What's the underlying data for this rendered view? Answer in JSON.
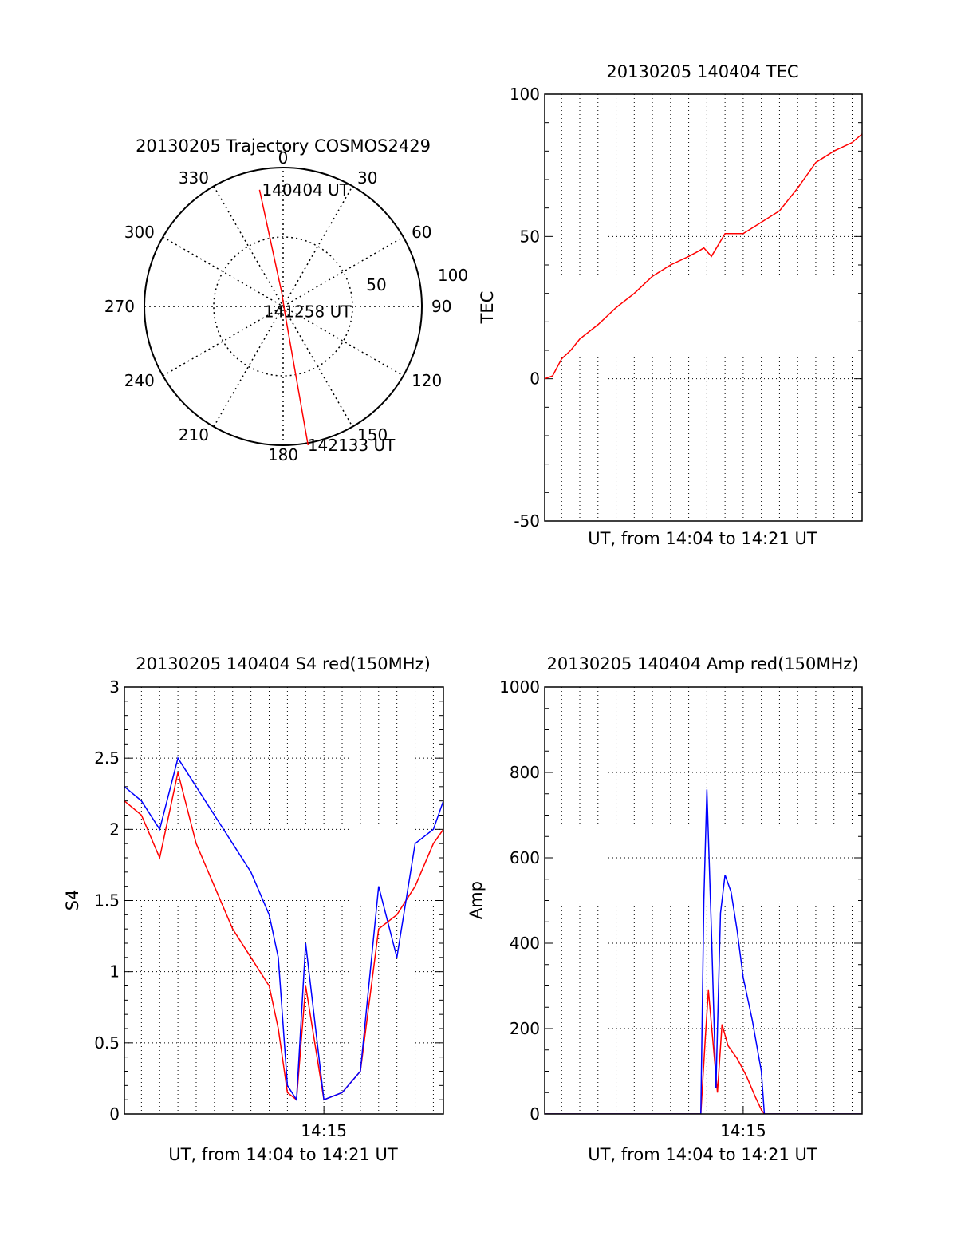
{
  "chart_data": [
    {
      "type": "scatter",
      "id": "trajectory",
      "title": "20130205 Trajectory COSMOS2429",
      "azimuth_labels": [
        "0",
        "30",
        "60",
        "90",
        "120",
        "150",
        "180",
        "210",
        "240",
        "270",
        "300",
        "330"
      ],
      "radial_labels": [
        "50",
        "100"
      ],
      "grid": true,
      "series": [
        {
          "color": "#ff0000",
          "azimuth_deg": [
            349,
            356,
            30,
            170
          ],
          "zenith_deg": [
            86,
            10,
            1,
            102
          ],
          "x": [
            -17,
            -1,
            1,
            18
          ],
          "y": [
            84,
            10,
            -3,
            -100
          ]
        }
      ],
      "annotations": [
        {
          "text": "140404 UT",
          "azimuth_deg": 349,
          "zenith_deg": 86
        },
        {
          "text": "141258 UT",
          "azimuth_deg": 30,
          "zenith_deg": 1
        },
        {
          "text": "142133 UT",
          "azimuth_deg": 170,
          "zenith_deg": 102
        }
      ]
    },
    {
      "type": "line",
      "id": "tec",
      "title": "20130205 140404 TEC",
      "xlabel": "UT, from 14:04 to 14:21 UT",
      "ylabel": "TEC",
      "ylim": [
        -50,
        100
      ],
      "xlim": [
        "14:04:04",
        "14:21:33"
      ],
      "yticks": [
        -50,
        0,
        50,
        100
      ],
      "grid": true,
      "series": [
        {
          "color": "#ff0000",
          "x": [
            "14:04:04",
            "14:04:30",
            "14:05:00",
            "14:05:30",
            "14:06:00",
            "14:07:00",
            "14:08:00",
            "14:09:00",
            "14:10:00",
            "14:11:00",
            "14:12:00",
            "14:12:35",
            "14:12:50",
            "14:13:15",
            "14:14:00",
            "14:15:00",
            "14:16:00",
            "14:17:00",
            "14:18:00",
            "14:19:00",
            "14:20:00",
            "14:21:00",
            "14:21:33"
          ],
          "y": [
            0,
            1,
            7,
            10,
            14,
            19,
            25,
            30,
            36,
            40,
            43,
            45,
            46,
            43,
            51,
            51,
            55,
            59,
            67,
            76,
            80,
            83,
            86
          ]
        }
      ]
    },
    {
      "type": "line",
      "id": "s4",
      "title": "20130205 140404 S4 red(150MHz)",
      "xlabel": "UT, from 14:04 to 14:21 UT",
      "ylabel": "S4",
      "ylim": [
        0,
        3
      ],
      "xlim": [
        "14:04:04",
        "14:21:33"
      ],
      "yticks": [
        0,
        0.5,
        1,
        1.5,
        2,
        2.5,
        3
      ],
      "xticks": [
        "14:15"
      ],
      "grid": true,
      "series": [
        {
          "color": "#ff0000",
          "x": [
            "14:04:04",
            "14:05:00",
            "14:06:00",
            "14:07:00",
            "14:08:00",
            "14:09:00",
            "14:10:00",
            "14:11:00",
            "14:12:00",
            "14:12:30",
            "14:13:00",
            "14:13:30",
            "14:14:00",
            "14:15:00",
            "14:16:00",
            "14:17:00",
            "14:18:00",
            "14:19:00",
            "14:20:00",
            "14:21:00",
            "14:21:33"
          ],
          "y": [
            2.2,
            2.1,
            1.8,
            2.4,
            1.9,
            1.6,
            1.3,
            1.1,
            0.9,
            0.6,
            0.15,
            0.1,
            0.9,
            0.1,
            0.15,
            0.3,
            1.3,
            1.4,
            1.6,
            1.9,
            2.0
          ]
        },
        {
          "color": "#0000ff",
          "x": [
            "14:04:04",
            "14:05:00",
            "14:06:00",
            "14:07:00",
            "14:08:00",
            "14:09:00",
            "14:10:00",
            "14:11:00",
            "14:12:00",
            "14:12:30",
            "14:13:00",
            "14:13:30",
            "14:14:00",
            "14:15:00",
            "14:16:00",
            "14:17:00",
            "14:18:00",
            "14:19:00",
            "14:20:00",
            "14:21:00",
            "14:21:33"
          ],
          "y": [
            2.3,
            2.2,
            2.0,
            2.5,
            2.3,
            2.1,
            1.9,
            1.7,
            1.4,
            1.1,
            0.2,
            0.1,
            1.2,
            0.1,
            0.15,
            0.3,
            1.6,
            1.1,
            1.9,
            2.0,
            2.2
          ]
        }
      ]
    },
    {
      "type": "line",
      "id": "amp",
      "title": "20130205 140404 Amp red(150MHz)",
      "xlabel": "UT, from 14:04 to 14:21 UT",
      "ylabel": "Amp",
      "ylim": [
        0,
        1000
      ],
      "xlim": [
        "14:04:04",
        "14:21:33"
      ],
      "yticks": [
        0,
        200,
        400,
        600,
        800,
        1000
      ],
      "xticks": [
        "14:15"
      ],
      "grid": true,
      "series": [
        {
          "color": "#ff0000",
          "x": [
            "14:04:04",
            "14:12:40",
            "14:12:55",
            "14:13:05",
            "14:13:20",
            "14:13:35",
            "14:13:50",
            "14:14:10",
            "14:14:40",
            "14:15:10",
            "14:15:40",
            "14:16:00",
            "14:16:10",
            "14:21:33"
          ],
          "y": [
            0,
            0,
            180,
            290,
            170,
            50,
            210,
            160,
            130,
            90,
            40,
            10,
            0,
            0
          ]
        },
        {
          "color": "#0000ff",
          "x": [
            "14:04:04",
            "14:12:40",
            "14:12:50",
            "14:13:00",
            "14:13:15",
            "14:13:30",
            "14:13:45",
            "14:14:00",
            "14:14:20",
            "14:14:40",
            "14:15:00",
            "14:15:30",
            "14:16:00",
            "14:16:10",
            "14:21:33"
          ],
          "y": [
            0,
            0,
            500,
            760,
            430,
            60,
            470,
            560,
            520,
            430,
            320,
            220,
            100,
            0,
            0
          ]
        }
      ]
    }
  ]
}
